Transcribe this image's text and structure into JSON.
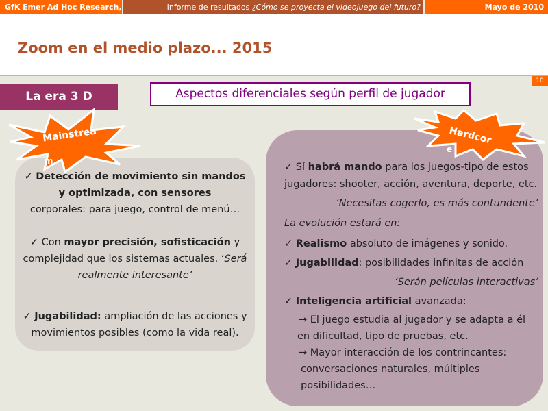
{
  "header": {
    "company": "GfK Emer Ad Hoc Research, S.L.",
    "report_prefix": "Informe de resultados",
    "report_title": "¿Cómo se proyecta el videojuego del futuro?",
    "date": "Mayo de 2010"
  },
  "slide": {
    "title": "Zoom en el medio plazo... 2015",
    "page_number": "10",
    "era_label": "La era 3 D",
    "section_title": "Aspectos diferenciales según perfil de jugador"
  },
  "mainstream": {
    "badge": "Mainstrea",
    "badge_wrap": "m",
    "p1_bold": "Detección de movimiento sin mandos y optimizada, con sensores",
    "p1_rest": "corporales: para juego, control de menú…",
    "p2_pre": "Con",
    "p2_bold": "mayor precisión, sofisticación",
    "p2_mid": "y complejidad que los sistemas actuales. ‘",
    "p2_italic": "Será realmente interesante’",
    "p3_bold": "Jugabilidad:",
    "p3_rest": "ampliación de las acciones y movimientos posibles (como la vida real)."
  },
  "hardcore": {
    "badge": "Hardcor",
    "badge_wrap": "e",
    "l1_pre": "Sí",
    "l1_bold": "habrá mando",
    "l1_rest": "para los juegos-tipo de estos",
    "l2": "jugadores: shooter, acción, aventura, deporte, etc.",
    "quote1": "‘Necesitas cogerlo, es más contundente’",
    "evolution": "La evolución estará en:",
    "b1_bold": "Realismo",
    "b1_rest": "absoluto de imágenes y sonido.",
    "b2_bold": "Jugabilidad",
    "b2_rest": ": posibilidades infinitas de acción",
    "quote2": "‘Serán películas interactivas’",
    "b3_bold": "Inteligencia artificial",
    "b3_rest": "avanzada:",
    "s1a": "→ El juego estudia al jugador y se adapta a él",
    "s1b": "en dificultad, tipo de pruebas, etc.",
    "s2a": "→ Mayor interacción de los contrincantes:",
    "s2b": "conversaciones naturales, múltiples",
    "s2c": "posibilidades…"
  },
  "check": "✓",
  "colors": {
    "orange": "#ff6600",
    "brown": "#b0522a",
    "purple": "#800080",
    "era": "#993366"
  }
}
